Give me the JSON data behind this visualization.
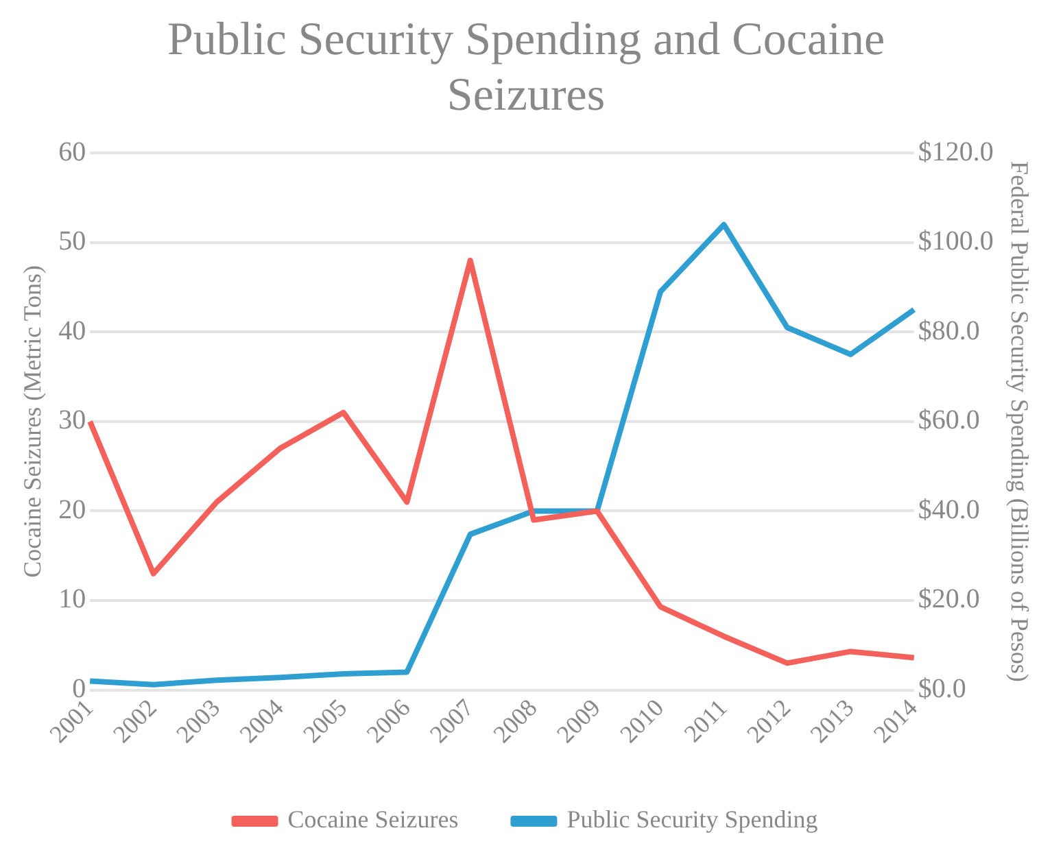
{
  "chart_data": {
    "type": "line",
    "title": "Public Security Spending and Cocaine Seizures",
    "ylabel": "Cocaine Seizures (Metric Tons)",
    "y2label": "Federal Public Security Spending (Billions of Pesos)",
    "categories": [
      "2001",
      "2002",
      "2003",
      "2004",
      "2005",
      "2006",
      "2007",
      "2008",
      "2009",
      "2010",
      "2011",
      "2012",
      "2013",
      "2014"
    ],
    "series": [
      {
        "name": "Cocaine Seizures",
        "color": "#f4605a",
        "values": [
          30,
          13,
          21,
          27,
          31,
          21,
          48,
          19,
          20,
          9.3,
          6,
          3,
          4.3,
          3.6
        ]
      },
      {
        "name": "Public Security Spending",
        "color": "#2e9fd0",
        "axis": "y2",
        "values": [
          2,
          1.2,
          2.2,
          2.8,
          3.6,
          4,
          34.8,
          40,
          40,
          89,
          104,
          81,
          75,
          85
        ]
      }
    ],
    "ylim": [
      0,
      60
    ],
    "yticks": [
      0,
      10,
      20,
      30,
      40,
      50,
      60
    ],
    "y2lim": [
      0,
      120
    ],
    "y2ticks": [
      {
        "value": 0,
        "label": "$0.0"
      },
      {
        "value": 20,
        "label": "$20.0"
      },
      {
        "value": 40,
        "label": "$40.0"
      },
      {
        "value": 60,
        "label": "$60.0"
      },
      {
        "value": 80,
        "label": "$80.0"
      },
      {
        "value": 100,
        "label": "$100.0"
      },
      {
        "value": 120,
        "label": "$120.0"
      }
    ],
    "grid": "y",
    "legend": "bottom",
    "marker": "none",
    "line_style": "solid"
  }
}
